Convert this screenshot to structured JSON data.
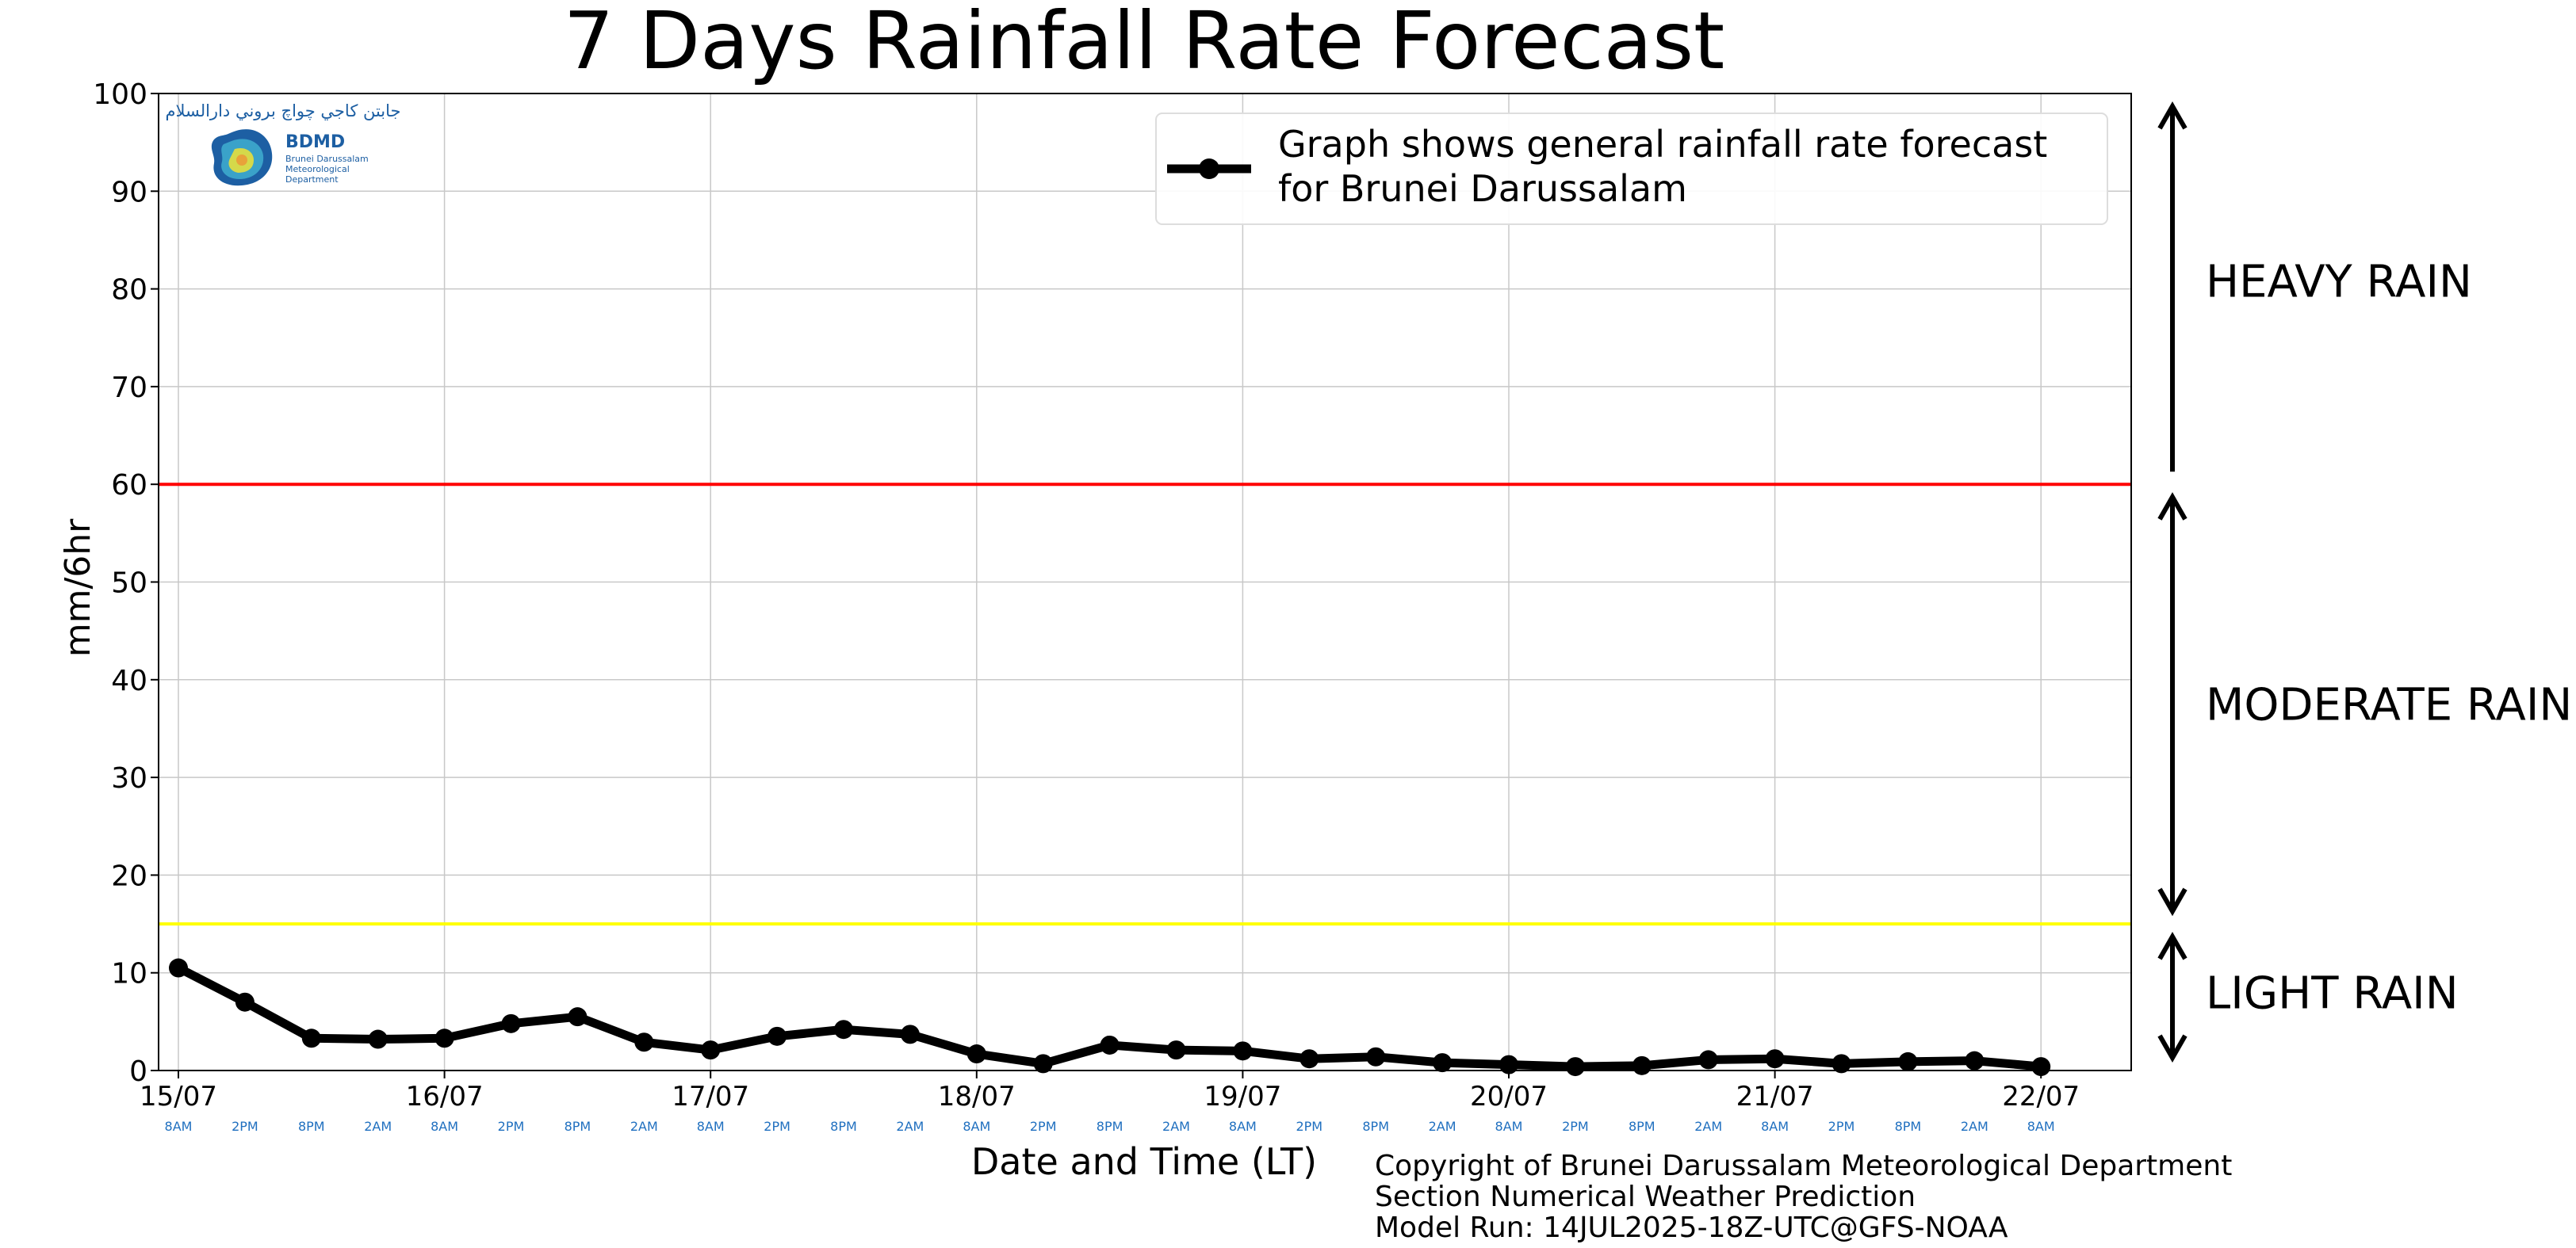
{
  "chart_data": {
    "type": "line",
    "title": "7 Days Rainfall Rate Forecast",
    "xlabel": "Date and Time (LT)",
    "ylabel": "mm/6hr",
    "ylim": [
      0,
      100
    ],
    "yticks": [
      0,
      10,
      20,
      30,
      40,
      50,
      60,
      70,
      80,
      90,
      100
    ],
    "grid": true,
    "legend_position": "top-right",
    "date_labels": [
      "15/07",
      "16/07",
      "17/07",
      "18/07",
      "19/07",
      "20/07",
      "21/07",
      "22/07"
    ],
    "time_labels": [
      "8AM",
      "2PM",
      "8PM",
      "2AM",
      "8AM",
      "2PM",
      "8PM",
      "2AM",
      "8AM",
      "2PM",
      "8PM",
      "2AM",
      "8AM",
      "2PM",
      "8PM",
      "2AM",
      "8AM",
      "2PM",
      "8PM",
      "2AM",
      "8AM",
      "2PM",
      "8PM",
      "2AM",
      "8AM",
      "2PM",
      "8PM",
      "2AM",
      "8AM"
    ],
    "series": [
      {
        "name": "Graph shows general rainfall rate forecast for Brunei Darussalam",
        "color": "#000000",
        "values": [
          10.5,
          7.0,
          3.3,
          3.2,
          3.3,
          4.8,
          5.5,
          2.9,
          2.1,
          3.5,
          4.2,
          3.7,
          1.7,
          0.7,
          2.6,
          2.1,
          2.0,
          1.2,
          1.4,
          0.8,
          0.6,
          0.4,
          0.5,
          1.1,
          1.2,
          0.7,
          0.9,
          1.0,
          0.4
        ]
      }
    ],
    "thresholds": [
      {
        "value": 60,
        "color": "#ff0000"
      },
      {
        "value": 15,
        "color": "#ffff00"
      }
    ],
    "bands": [
      {
        "label": "HEAVY RAIN",
        "from": 60,
        "to": 100
      },
      {
        "label": "MODERATE RAIN",
        "from": 15,
        "to": 60
      },
      {
        "label": "LIGHT RAIN",
        "from": 0,
        "to": 15
      }
    ]
  },
  "legend": {
    "line1": "Graph shows general rainfall rate forecast",
    "line2": "for Brunei Darussalam"
  },
  "logo": {
    "arabic": "جابتن کاجي چواچ بروني دارالسلام",
    "abbr": "BDMD",
    "line1": "Brunei Darussalam",
    "line2": "Meteorological",
    "line3": "Department"
  },
  "footer": {
    "line1": "Copyright of Brunei Darussalam Meteorological Department",
    "line2": "Section Numerical Weather Prediction",
    "line3": "Model Run: 14JUL2025-18Z-UTC@GFS-NOAA"
  },
  "colors": {
    "grid": "#c8c8c8",
    "time_labels": "#1f6fbf",
    "logo_blue": "#1d5fa3"
  }
}
